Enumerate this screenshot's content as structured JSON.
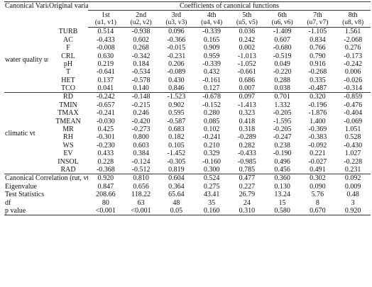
{
  "header": {
    "canonical_variables_label": "Canonical Variables",
    "original_variables_label": "Original variables",
    "coefficients_title": "Coefficients of canonical functions",
    "functions": [
      {
        "index": "1st",
        "pair": "(u1, v1)"
      },
      {
        "index": "2nd",
        "pair": "(u2, v2)"
      },
      {
        "index": "3rd",
        "pair": "(u3, v3)"
      },
      {
        "index": "4th",
        "pair": "(u4, v4)"
      },
      {
        "index": "5th",
        "pair": "(u5, v5)"
      },
      {
        "index": "6th",
        "pair": "(u6, v6)"
      },
      {
        "index": "7th",
        "pair": "(u7, v7)"
      },
      {
        "index": "8th",
        "pair": "(u8, v8)"
      }
    ]
  },
  "groups": [
    {
      "label": "water quality ut",
      "rows": [
        {
          "var": "TURB",
          "values": [
            "0.514",
            "-0.938",
            "0.096",
            "-0.339",
            "0.036",
            "-1.409",
            "-1.105",
            "1.561"
          ]
        },
        {
          "var": "AC",
          "values": [
            "-0.433",
            "0.602",
            "-0.366",
            "0.165",
            "0.242",
            "0.607",
            "0.834",
            "-2.068"
          ]
        },
        {
          "var": "F",
          "values": [
            "-0.008",
            "0.268",
            "-0.015",
            "0.909",
            "0.002",
            "-0.680",
            "0.766",
            "0.276"
          ]
        },
        {
          "var": "CRL",
          "values": [
            "0.630",
            "-0.342",
            "-0.231",
            "0.959",
            "-1.013",
            "-0.519",
            "0.790",
            "-0.173"
          ]
        },
        {
          "var": "pH",
          "values": [
            "0.219",
            "0.184",
            "0.206",
            "-0.339",
            "-1.052",
            "0.049",
            "0.916",
            "-0.242"
          ]
        },
        {
          "var": "T",
          "values": [
            "-0.641",
            "-0.534",
            "-0.089",
            "0.432",
            "-0.661",
            "-0.220",
            "-0.268",
            "0.006"
          ]
        },
        {
          "var": "HET",
          "values": [
            "0.137",
            "-0.578",
            "0.430",
            "-0.161",
            "0.686",
            "0.288",
            "0.335",
            "-0.026"
          ]
        },
        {
          "var": "TCO",
          "values": [
            "0.041",
            "0.140",
            "0.846",
            "0.127",
            "0.007",
            "0.038",
            "-0.487",
            "-0.314"
          ]
        }
      ]
    },
    {
      "label": "climatic vt",
      "rows": [
        {
          "var": "RD",
          "values": [
            "-0.242",
            "-0.148",
            "-1.523",
            "-0.678",
            "0.097",
            "0.701",
            "0.320",
            "-0.859"
          ]
        },
        {
          "var": "TMIN",
          "values": [
            "-0.657",
            "-0.215",
            "0.902",
            "-0.152",
            "-1.413",
            "1.332",
            "-0.196",
            "-0.476"
          ]
        },
        {
          "var": "TMAX",
          "values": [
            "-0.241",
            "0.246",
            "0.595",
            "0.280",
            "0.323",
            "-0.205",
            "-1.876",
            "-0.404"
          ]
        },
        {
          "var": "TMEAN",
          "values": [
            "-0.030",
            "-0.420",
            "-0.587",
            "0.085",
            "0.418",
            "-1.595",
            "1.400",
            "-0.069"
          ]
        },
        {
          "var": "MR",
          "values": [
            "0.425",
            "-0.273",
            "0.683",
            "0.102",
            "0.318",
            "-0.205",
            "-0.369",
            "1.051"
          ]
        },
        {
          "var": "RH",
          "values": [
            "-0.301",
            "0.800",
            "0.182",
            "-0.241",
            "-0.289",
            "-0.247",
            "-0.383",
            "0.528"
          ]
        },
        {
          "var": "WS",
          "values": [
            "-0.230",
            "0.603",
            "0.105",
            "0.210",
            "0.282",
            "0.238",
            "-0.092",
            "-0.430"
          ]
        },
        {
          "var": "EV",
          "values": [
            "0.433",
            "0.384",
            "-1.452",
            "0.329",
            "-0.433",
            "-0.190",
            "0.221",
            "1.027"
          ]
        },
        {
          "var": "INSOL",
          "values": [
            "0.228",
            "-0.124",
            "-0.305",
            "-0.160",
            "-0.985",
            "0.496",
            "-0.027",
            "-0.228"
          ]
        },
        {
          "var": "RAD",
          "values": [
            "-0.368",
            "-0.512",
            "0.819",
            "0.300",
            "0.785",
            "0.456",
            "0.491",
            "0.231"
          ]
        }
      ]
    }
  ],
  "stats": [
    {
      "label": "Canonical Correlation (rut, vt)",
      "values": [
        "0.920",
        "0.810",
        "0.604",
        "0.524",
        "0.477",
        "0.360",
        "0.302",
        "0.092"
      ]
    },
    {
      "label": "Eigenvalue",
      "values": [
        "0.847",
        "0.656",
        "0.364",
        "0.275",
        "0.227",
        "0.130",
        "0.090",
        "0.009"
      ]
    },
    {
      "label": "Test Statistics",
      "values": [
        "208.66",
        "118.22",
        "65.64",
        "43.41",
        "26.79",
        "13.24",
        "5.76",
        "0.48"
      ]
    },
    {
      "label": "df",
      "values": [
        "80",
        "63",
        "48",
        "35",
        "24",
        "15",
        "8",
        "3"
      ]
    },
    {
      "label": "p value",
      "values": [
        "<0.001",
        "<0.001",
        "0.05",
        "0.160",
        "0.310",
        "0.580",
        "0.670",
        "0.920"
      ]
    }
  ]
}
